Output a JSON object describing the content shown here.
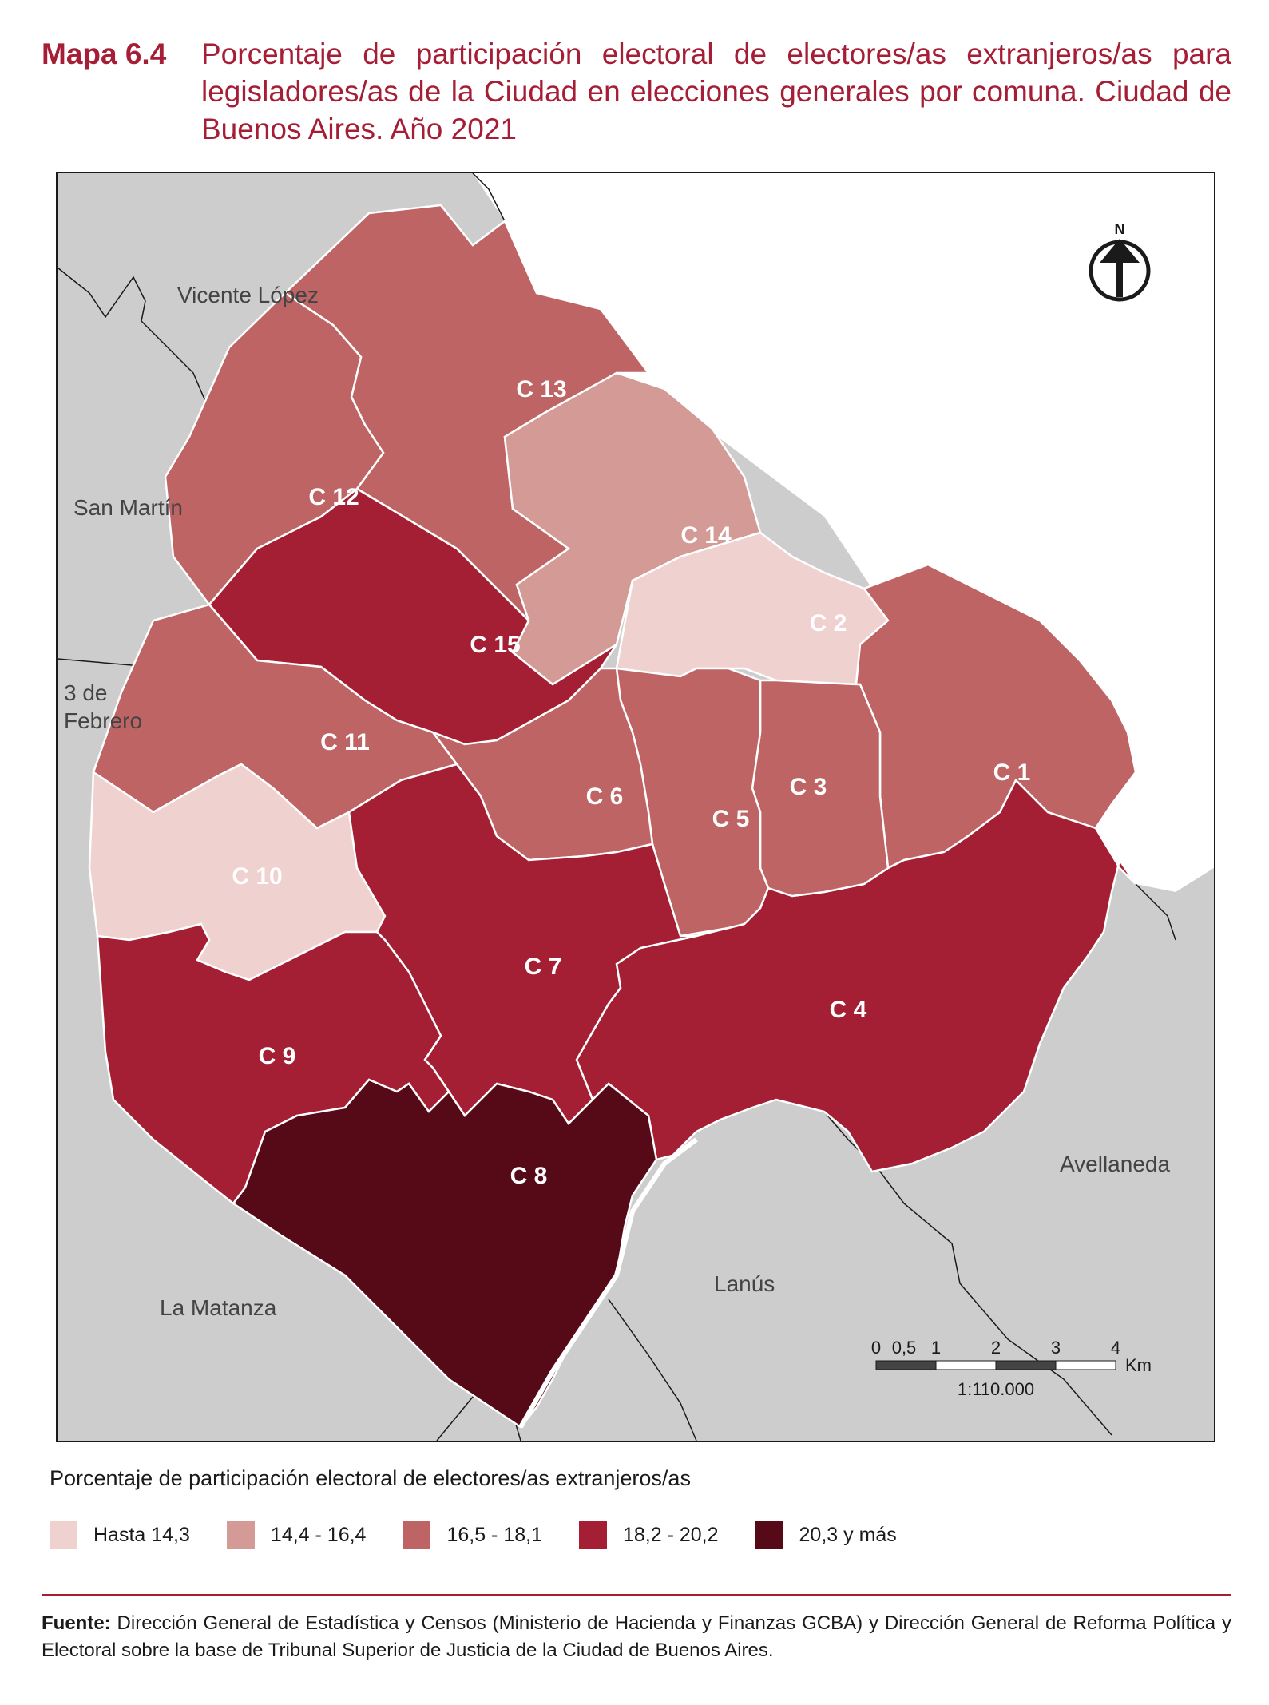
{
  "header": {
    "number": "Mapa 6.4",
    "title": "Porcentaje de participación electoral de electores/as extranjeros/as para legisladores/as de la Ciudad en elecciones generales por comuna. Ciudad de Buenos Aires. Año 2021"
  },
  "map": {
    "neighbors": {
      "vicente_lopez": "Vicente López",
      "san_martin": "San Martín",
      "tres_de_febrero_1": "3 de",
      "tres_de_febrero_2": "Febrero",
      "la_matanza": "La Matanza",
      "lanus": "Lanús",
      "avellaneda": "Avellaneda"
    },
    "comunas": {
      "c1": {
        "label": "C 1",
        "class": 3
      },
      "c2": {
        "label": "C 2",
        "class": 1
      },
      "c3": {
        "label": "C 3",
        "class": 3
      },
      "c4": {
        "label": "C 4",
        "class": 4
      },
      "c5": {
        "label": "C 5",
        "class": 3
      },
      "c6": {
        "label": "C 6",
        "class": 3
      },
      "c7": {
        "label": "C 7",
        "class": 4
      },
      "c8": {
        "label": "C 8",
        "class": 5
      },
      "c9": {
        "label": "C 9",
        "class": 4
      },
      "c10": {
        "label": "C 10",
        "class": 1
      },
      "c11": {
        "label": "C 11",
        "class": 3
      },
      "c12": {
        "label": "C 12",
        "class": 3
      },
      "c13": {
        "label": "C 13",
        "class": 3
      },
      "c14": {
        "label": "C 14",
        "class": 2
      },
      "c15": {
        "label": "C 15",
        "class": 4
      }
    },
    "north_label": "N",
    "scale": {
      "ticks": [
        "0",
        "0,5",
        "1",
        "2",
        "3",
        "4"
      ],
      "unit": "Km",
      "ratio": "1:110.000"
    },
    "colors": {
      "neighbor": "#cdcdcd",
      "class1": "#efd1cf",
      "class2": "#d49a96",
      "class3": "#bf6464",
      "class4": "#a41f34",
      "class5": "#560a18"
    }
  },
  "legend": {
    "title": "Porcentaje de participación electoral de electores/as extranjeros/as",
    "items": [
      {
        "label": "Hasta 14,3",
        "color": "#efd1cf"
      },
      {
        "label": "14,4 - 16,4",
        "color": "#d49a96"
      },
      {
        "label": "16,5 - 18,1",
        "color": "#bf6464"
      },
      {
        "label": "18,2 - 20,2",
        "color": "#a41f34"
      },
      {
        "label": "20,3 y más",
        "color": "#560a18"
      }
    ]
  },
  "source": {
    "label": "Fuente:",
    "text": "Dirección General de Estadística y Censos (Ministerio de Hacienda y Finanzas GCBA) y Dirección General de Reforma Política y Electoral sobre la base de Tribunal Superior de Justicia de la Ciudad de Buenos Aires."
  }
}
